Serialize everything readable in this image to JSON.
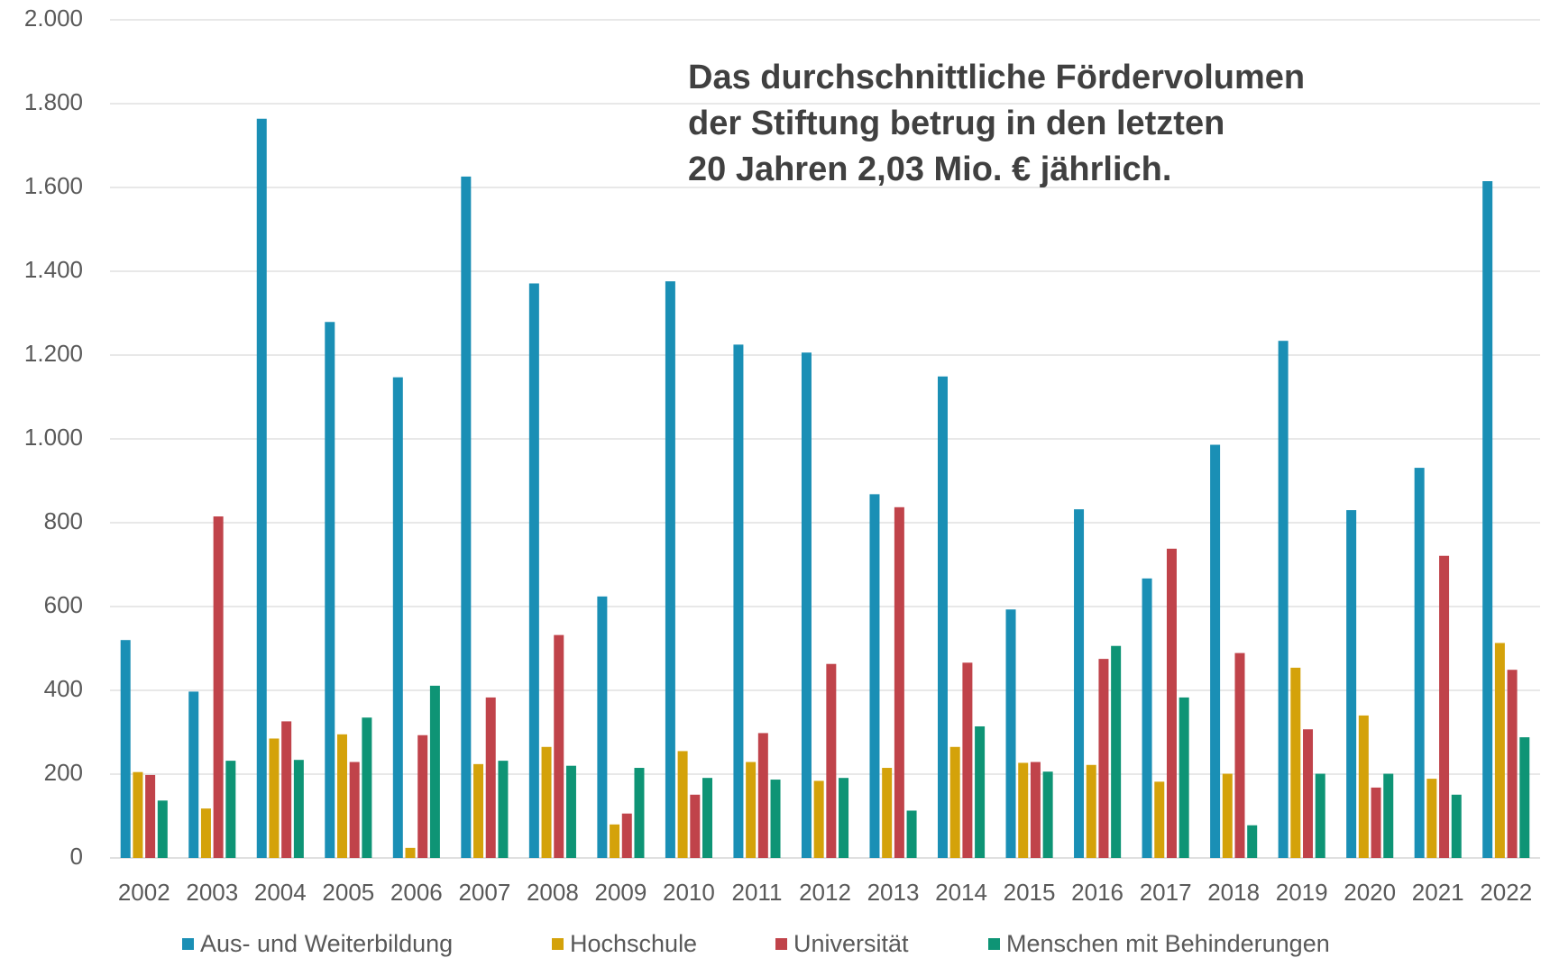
{
  "chart_data": {
    "type": "bar",
    "annotation": [
      "Das durchschnittliche Fördervolumen",
      "der Stiftung betrug in den letzten",
      "20 Jahren 2,03 Mio. € jährlich."
    ],
    "categories": [
      "2002",
      "2003",
      "2004",
      "2005",
      "2006",
      "2007",
      "2008",
      "2009",
      "2010",
      "2011",
      "2012",
      "2013",
      "2014",
      "2015",
      "2016",
      "2017",
      "2018",
      "2019",
      "2020",
      "2021",
      "2022"
    ],
    "series": [
      {
        "name": "Aus- und Weiterbildung",
        "color": "#1a8fb5",
        "values": [
          520,
          397,
          1764,
          1279,
          1147,
          1626,
          1371,
          624,
          1376,
          1225,
          1206,
          868,
          1149,
          593,
          832,
          667,
          986,
          1234,
          830,
          931,
          1615
        ]
      },
      {
        "name": "Hochschule",
        "color": "#d4a20a",
        "values": [
          205,
          118,
          285,
          295,
          24,
          224,
          265,
          80,
          255,
          229,
          184,
          215,
          265,
          227,
          222,
          182,
          201,
          454,
          340,
          189,
          513
        ]
      },
      {
        "name": "Universität",
        "color": "#c0434a",
        "values": [
          198,
          815,
          326,
          229,
          293,
          383,
          532,
          106,
          151,
          298,
          463,
          837,
          466,
          229,
          475,
          738,
          489,
          307,
          168,
          721,
          449
        ]
      },
      {
        "name": "Menschen mit Behinderungen",
        "color": "#0e9475",
        "values": [
          137,
          232,
          234,
          335,
          411,
          232,
          220,
          215,
          191,
          187,
          191,
          113,
          314,
          206,
          506,
          383,
          78,
          201,
          201,
          151,
          288
        ]
      }
    ],
    "ylim": [
      0,
      2000
    ],
    "yticks": [
      0,
      200,
      400,
      600,
      800,
      {
        "value": 1000,
        "label": "1.000"
      },
      {
        "value": 1200,
        "label": "1.200"
      },
      {
        "value": 1400,
        "label": "1.400"
      },
      {
        "value": 1600,
        "label": "1.600"
      },
      {
        "value": 1800,
        "label": "1.800"
      },
      {
        "value": 2000,
        "label": "2.000"
      }
    ],
    "grid": true,
    "legend": "bottom"
  }
}
